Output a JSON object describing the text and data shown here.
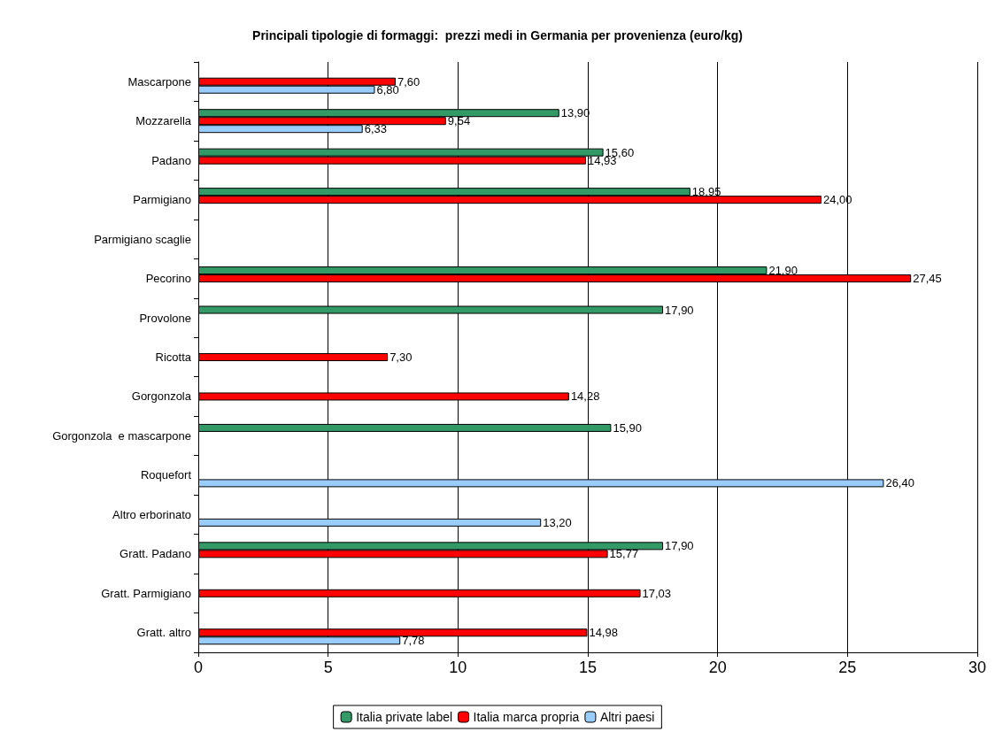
{
  "chart_data": {
    "type": "bar",
    "orientation": "horizontal",
    "title": "Principali tipologie di formaggi:  prezzi medi in Germania per provenienza (euro/kg)",
    "categories": [
      "Mascarpone",
      "Mozzarella",
      "Padano",
      "Parmigiano",
      "Parmigiano scaglie",
      "Pecorino",
      "Provolone",
      "Ricotta",
      "Gorgonzola",
      "Gorgonzola  e mascarpone",
      "Roquefort",
      "Altro erborinato",
      "Gratt. Padano",
      "Gratt. Parmigiano",
      "Gratt. altro"
    ],
    "series": [
      {
        "name": "Italia private label",
        "color": "#339966",
        "values": [
          null,
          13.9,
          15.6,
          18.95,
          null,
          21.9,
          17.9,
          null,
          null,
          15.9,
          null,
          null,
          17.9,
          null,
          null
        ],
        "value_labels": [
          null,
          "13,90",
          "15,60",
          "18,95",
          null,
          "21,90",
          "17,90",
          null,
          null,
          "15,90",
          null,
          null,
          "17,90",
          null,
          null
        ]
      },
      {
        "name": "Italia marca propria",
        "color": "#ff0000",
        "values": [
          7.6,
          9.54,
          14.93,
          24.0,
          null,
          27.45,
          null,
          7.3,
          14.28,
          null,
          null,
          null,
          15.77,
          17.03,
          14.98
        ],
        "value_labels": [
          "7,60",
          "9,54",
          "14,93",
          "24,00",
          null,
          "27,45",
          null,
          "7,30",
          "14,28",
          null,
          null,
          null,
          "15,77",
          "17,03",
          "14,98"
        ]
      },
      {
        "name": "Altri paesi",
        "color": "#99ccff",
        "values": [
          6.8,
          6.33,
          null,
          null,
          null,
          null,
          null,
          null,
          null,
          null,
          26.4,
          13.2,
          null,
          null,
          7.78
        ],
        "value_labels": [
          "6,80",
          "6,33",
          null,
          null,
          null,
          null,
          null,
          null,
          null,
          null,
          "26,40",
          "13,20",
          null,
          null,
          "7,78"
        ]
      }
    ],
    "xlim": [
      0,
      30
    ],
    "xticks": [
      0,
      5,
      10,
      15,
      20,
      25,
      30
    ],
    "grid": "x",
    "legend": "bottom"
  }
}
